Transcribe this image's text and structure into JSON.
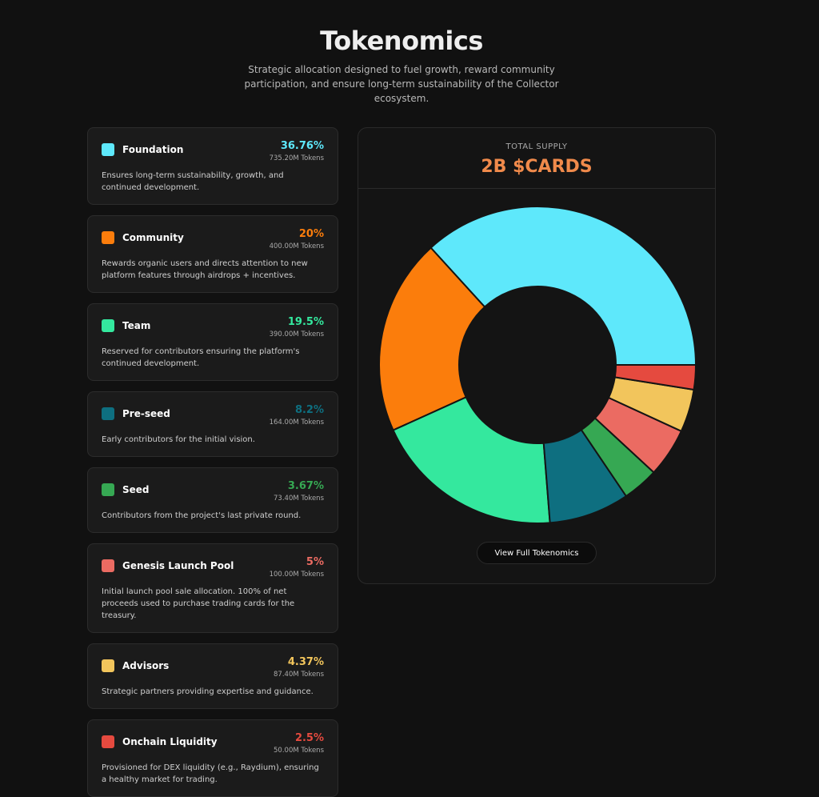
{
  "header": {
    "title": "Tokenomics",
    "subtitle": "Strategic allocation designed to fuel growth, reward community participation, and ensure long-term sustainability of the Collector ecosystem."
  },
  "allocations": [
    {
      "tokens": "735.20M Tokens",
      "description": "Ensures long-term sustainability, growth, and continued development."
    },
    {
      "tokens": "400.00M Tokens",
      "description": "Rewards organic users and directs attention to new platform features through airdrops + incentives."
    },
    {
      "tokens": "390.00M Tokens",
      "description": "Reserved for contributors ensuring the platform's continued development."
    },
    {
      "tokens": "164.00M Tokens",
      "description": "Early contributors for the initial vision."
    },
    {
      "tokens": "73.40M Tokens",
      "description": "Contributors from the project's last private round."
    },
    {
      "tokens": "100.00M Tokens",
      "description": "Initial launch pool sale allocation. 100% of net proceeds used to purchase trading cards for the treasury."
    },
    {
      "tokens": "87.40M Tokens",
      "description": "Strategic partners providing expertise and guidance."
    },
    {
      "tokens": "50.00M Tokens",
      "description": "Provisioned for DEX liquidity (e.g., Raydium), ensuring a healthy market for trading."
    }
  ],
  "chart_data": {
    "type": "pie",
    "donut": true,
    "categories": [
      "Foundation",
      "Community",
      "Team",
      "Pre-seed",
      "Seed",
      "Genesis Launch Pool",
      "Advisors",
      "Onchain Liquidity"
    ],
    "values": [
      36.76,
      20,
      19.5,
      8.2,
      3.67,
      5,
      4.37,
      2.5
    ],
    "value_labels": [
      "36.76%",
      "20%",
      "19.5%",
      "8.2%",
      "3.67%",
      "5%",
      "4.37%",
      "2.5%"
    ],
    "colors": [
      "#5ee8fb",
      "#fb7d0c",
      "#34e89e",
      "#0e6f80",
      "#36a853",
      "#eb6b62",
      "#f2c55c",
      "#e54a3f"
    ]
  },
  "supply": {
    "label": "TOTAL SUPPLY",
    "value": "2B $CARDS"
  },
  "button": "View Full Tokenomics"
}
